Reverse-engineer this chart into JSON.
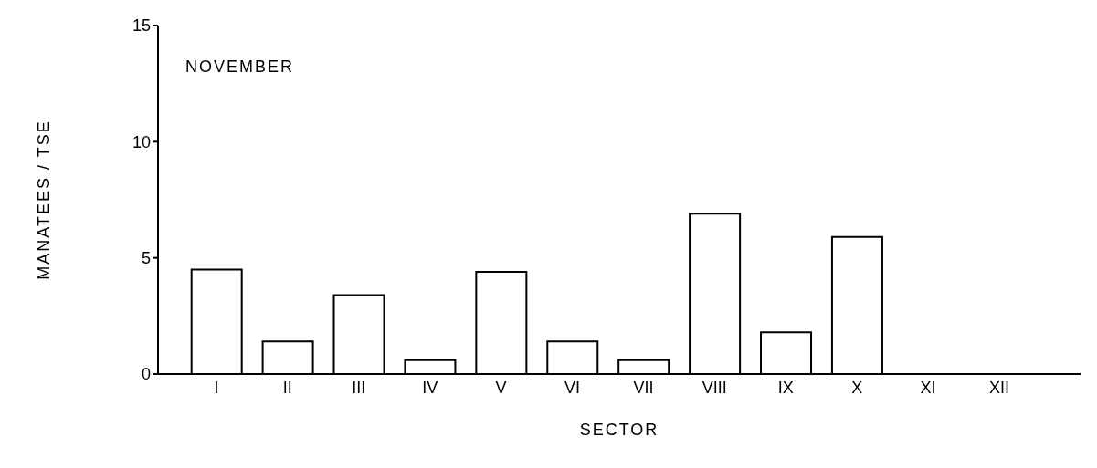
{
  "chart_data": {
    "type": "bar",
    "xlabel": "SECTOR",
    "ylabel": "MANATEES / TSE",
    "annotations": [
      "NOVEMBER"
    ],
    "categories": [
      "I",
      "II",
      "III",
      "IV",
      "V",
      "VI",
      "VII",
      "VIII",
      "IX",
      "X",
      "XI",
      "XII"
    ],
    "values": [
      4.5,
      1.4,
      3.4,
      0.6,
      4.4,
      1.4,
      0.6,
      6.9,
      1.8,
      5.9,
      null,
      null
    ],
    "color": "#ffffff",
    "ylim": [
      0,
      15
    ],
    "yticks": [
      0,
      5,
      10,
      15
    ],
    "grid": false,
    "legend": false
  }
}
